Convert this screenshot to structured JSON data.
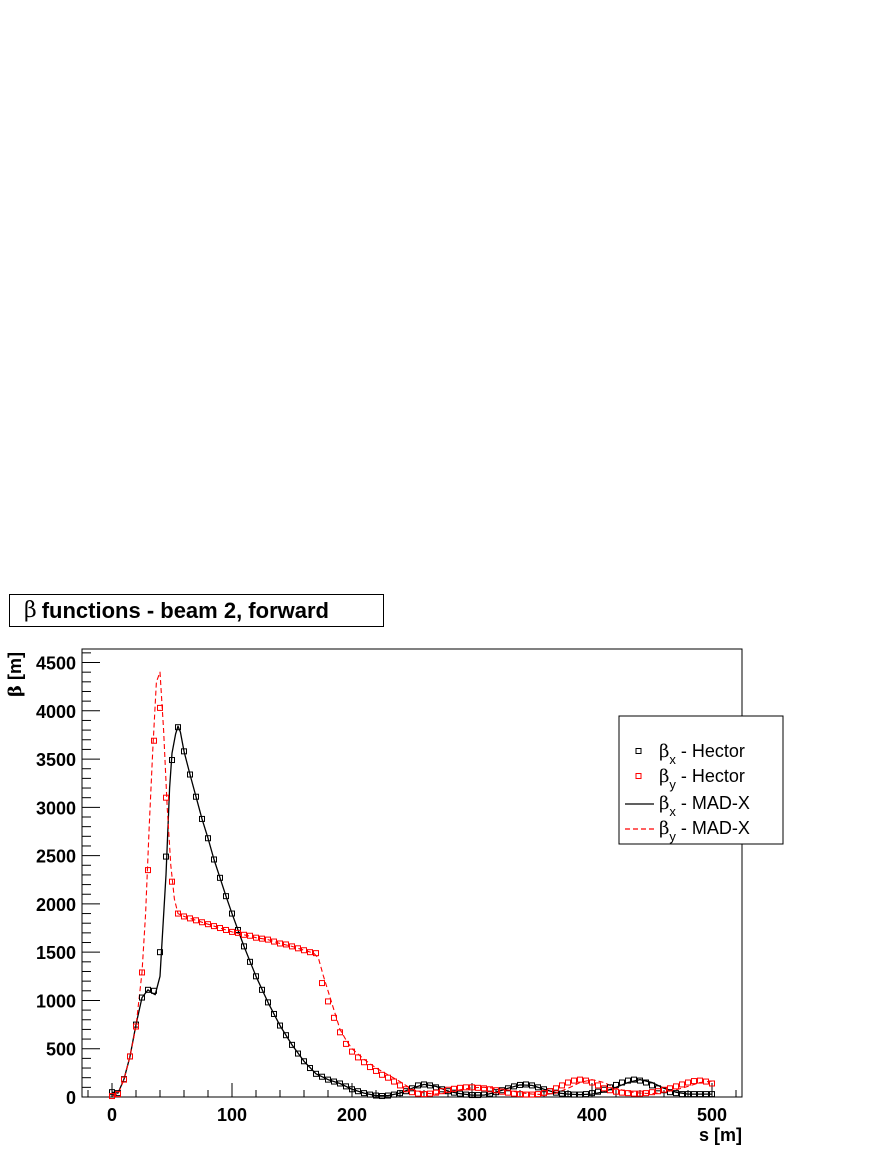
{
  "chart_data": {
    "type": "scatter",
    "title": "functions - beam 2, forward",
    "title_symbol": "β",
    "xlabel": "s [m]",
    "ylabel": "β [m]",
    "xlim": [
      -25,
      525
    ],
    "ylim": [
      0,
      4640
    ],
    "x_ticks": [
      0,
      100,
      200,
      300,
      400,
      500
    ],
    "x_tick_labels": [
      "0",
      "100",
      "200",
      "300",
      "400",
      "500"
    ],
    "y_ticks": [
      0,
      500,
      1000,
      1500,
      2000,
      2500,
      3000,
      3500,
      4000,
      4500
    ],
    "y_tick_labels": [
      "0",
      "500",
      "1000",
      "1500",
      "2000",
      "2500",
      "3000",
      "3500",
      "4000",
      "4500"
    ],
    "legend_position": "top-right",
    "legend": [
      {
        "symbol": "β",
        "sub": "x",
        "text": " - Hector",
        "style": "marker",
        "color": "#000000"
      },
      {
        "symbol": "β",
        "sub": "y",
        "text": " - Hector",
        "style": "marker",
        "color": "#ff0000"
      },
      {
        "symbol": "β",
        "sub": "x",
        "text": " - MAD-X",
        "style": "solid",
        "color": "#000000"
      },
      {
        "symbol": "β",
        "sub": "y",
        "text": " - MAD-X",
        "style": "dashed",
        "color": "#ff0000"
      }
    ],
    "series": [
      {
        "name": "βx - Hector",
        "style": "marker",
        "color": "#000000",
        "x": [
          0,
          5,
          10,
          15,
          20,
          25,
          30,
          35,
          40,
          45,
          50,
          55,
          60,
          65,
          70,
          75,
          80,
          85,
          90,
          95,
          100,
          105,
          110,
          115,
          120,
          125,
          130,
          135,
          140,
          145,
          150,
          155,
          160,
          165,
          170,
          175,
          180,
          185,
          190,
          195,
          200,
          205,
          210,
          215,
          220,
          225,
          230,
          235,
          240,
          245,
          250,
          255,
          260,
          265,
          270,
          275,
          280,
          285,
          290,
          295,
          300,
          305,
          310,
          315,
          320,
          325,
          330,
          335,
          340,
          345,
          350,
          355,
          360,
          365,
          370,
          375,
          380,
          385,
          390,
          395,
          400,
          405,
          410,
          415,
          420,
          425,
          430,
          435,
          440,
          445,
          450,
          455,
          460,
          465,
          470,
          475,
          480,
          485,
          490,
          495,
          500
        ],
        "y": [
          50,
          40,
          185,
          420,
          750,
          1030,
          1110,
          1100,
          1500,
          2490,
          3490,
          3830,
          3580,
          3340,
          3110,
          2880,
          2680,
          2460,
          2270,
          2080,
          1900,
          1730,
          1560,
          1400,
          1250,
          1110,
          980,
          860,
          740,
          640,
          540,
          450,
          370,
          300,
          240,
          210,
          180,
          160,
          140,
          110,
          80,
          60,
          40,
          25,
          15,
          10,
          15,
          25,
          40,
          60,
          90,
          120,
          130,
          120,
          100,
          80,
          60,
          45,
          35,
          25,
          20,
          20,
          25,
          35,
          50,
          70,
          90,
          110,
          125,
          130,
          120,
          100,
          80,
          60,
          45,
          35,
          30,
          25,
          25,
          30,
          40,
          55,
          75,
          100,
          125,
          150,
          170,
          180,
          170,
          150,
          120,
          90,
          70,
          50,
          40,
          30,
          30,
          30,
          30,
          30,
          30
        ]
      },
      {
        "name": "βy - Hector",
        "style": "marker",
        "color": "#ff0000",
        "x": [
          0,
          5,
          10,
          15,
          20,
          25,
          30,
          35,
          40,
          45,
          50,
          55,
          60,
          65,
          70,
          75,
          80,
          85,
          90,
          95,
          100,
          105,
          110,
          115,
          120,
          125,
          130,
          135,
          140,
          145,
          150,
          155,
          160,
          165,
          170,
          175,
          180,
          185,
          190,
          195,
          200,
          205,
          210,
          215,
          220,
          225,
          230,
          235,
          240,
          245,
          250,
          255,
          260,
          265,
          270,
          275,
          280,
          285,
          290,
          295,
          300,
          305,
          310,
          315,
          320,
          325,
          330,
          335,
          340,
          345,
          350,
          355,
          360,
          365,
          370,
          375,
          380,
          385,
          390,
          395,
          400,
          405,
          410,
          415,
          420,
          425,
          430,
          435,
          440,
          445,
          450,
          455,
          460,
          465,
          470,
          475,
          480,
          485,
          490,
          495,
          500
        ],
        "y": [
          10,
          30,
          180,
          420,
          730,
          1290,
          2350,
          3690,
          4030,
          3100,
          2230,
          1900,
          1870,
          1850,
          1830,
          1810,
          1790,
          1770,
          1750,
          1730,
          1710,
          1700,
          1680,
          1670,
          1650,
          1640,
          1630,
          1610,
          1590,
          1580,
          1560,
          1540,
          1520,
          1500,
          1490,
          1180,
          990,
          820,
          670,
          550,
          470,
          410,
          360,
          310,
          270,
          230,
          200,
          160,
          120,
          80,
          50,
          35,
          30,
          35,
          45,
          60,
          75,
          85,
          95,
          100,
          100,
          95,
          90,
          80,
          70,
          55,
          45,
          35,
          30,
          25,
          25,
          30,
          40,
          60,
          90,
          120,
          150,
          170,
          180,
          170,
          150,
          120,
          90,
          70,
          55,
          45,
          40,
          35,
          35,
          40,
          50,
          60,
          75,
          90,
          110,
          130,
          150,
          165,
          170,
          160,
          140
        ]
      },
      {
        "name": "βx - MAD-X",
        "style": "solid",
        "color": "#000000",
        "x": [
          0,
          5,
          10,
          15,
          20,
          25,
          30,
          33,
          36,
          40,
          45,
          48,
          50,
          53,
          55,
          57,
          60,
          65,
          70,
          75,
          80,
          85,
          90,
          95,
          100,
          110,
          120,
          130,
          140,
          150,
          160,
          170,
          180,
          190,
          200,
          210,
          220,
          230,
          240,
          250,
          260,
          270,
          280,
          290,
          300,
          310,
          320,
          330,
          340,
          350,
          360,
          370,
          380,
          390,
          400,
          410,
          420,
          430,
          440,
          450,
          460,
          470,
          480,
          490,
          500
        ],
        "y": [
          50,
          40,
          185,
          420,
          750,
          1030,
          1110,
          1080,
          1060,
          1250,
          2300,
          3200,
          3560,
          3760,
          3840,
          3780,
          3580,
          3340,
          3110,
          2880,
          2680,
          2460,
          2270,
          2080,
          1900,
          1560,
          1250,
          980,
          740,
          540,
          370,
          240,
          180,
          140,
          80,
          40,
          15,
          15,
          40,
          90,
          130,
          110,
          60,
          35,
          20,
          20,
          50,
          90,
          125,
          120,
          80,
          45,
          30,
          25,
          30,
          55,
          100,
          150,
          180,
          150,
          90,
          50,
          30,
          30,
          30
        ]
      },
      {
        "name": "βy - MAD-X",
        "style": "dashed",
        "color": "#ff0000",
        "x": [
          0,
          5,
          10,
          15,
          20,
          25,
          28,
          31,
          34,
          37,
          40,
          43,
          46,
          49,
          52,
          55,
          60,
          70,
          80,
          90,
          100,
          110,
          120,
          130,
          140,
          150,
          160,
          168,
          172,
          176,
          180,
          185,
          190,
          195,
          200,
          210,
          220,
          230,
          240,
          250,
          260,
          270,
          280,
          290,
          300,
          310,
          320,
          330,
          340,
          350,
          360,
          370,
          380,
          390,
          400,
          410,
          420,
          430,
          440,
          450,
          460,
          470,
          480,
          490,
          500
        ],
        "y": [
          10,
          30,
          180,
          420,
          730,
          1290,
          1900,
          2800,
          3600,
          4300,
          4400,
          3800,
          3000,
          2400,
          2050,
          1900,
          1870,
          1830,
          1790,
          1750,
          1710,
          1680,
          1650,
          1630,
          1590,
          1560,
          1520,
          1490,
          1440,
          1260,
          1100,
          900,
          700,
          590,
          500,
          390,
          300,
          230,
          160,
          80,
          40,
          30,
          45,
          75,
          95,
          100,
          90,
          70,
          45,
          30,
          25,
          40,
          90,
          150,
          180,
          150,
          90,
          55,
          40,
          35,
          50,
          75,
          110,
          150,
          165
        ]
      }
    ]
  }
}
